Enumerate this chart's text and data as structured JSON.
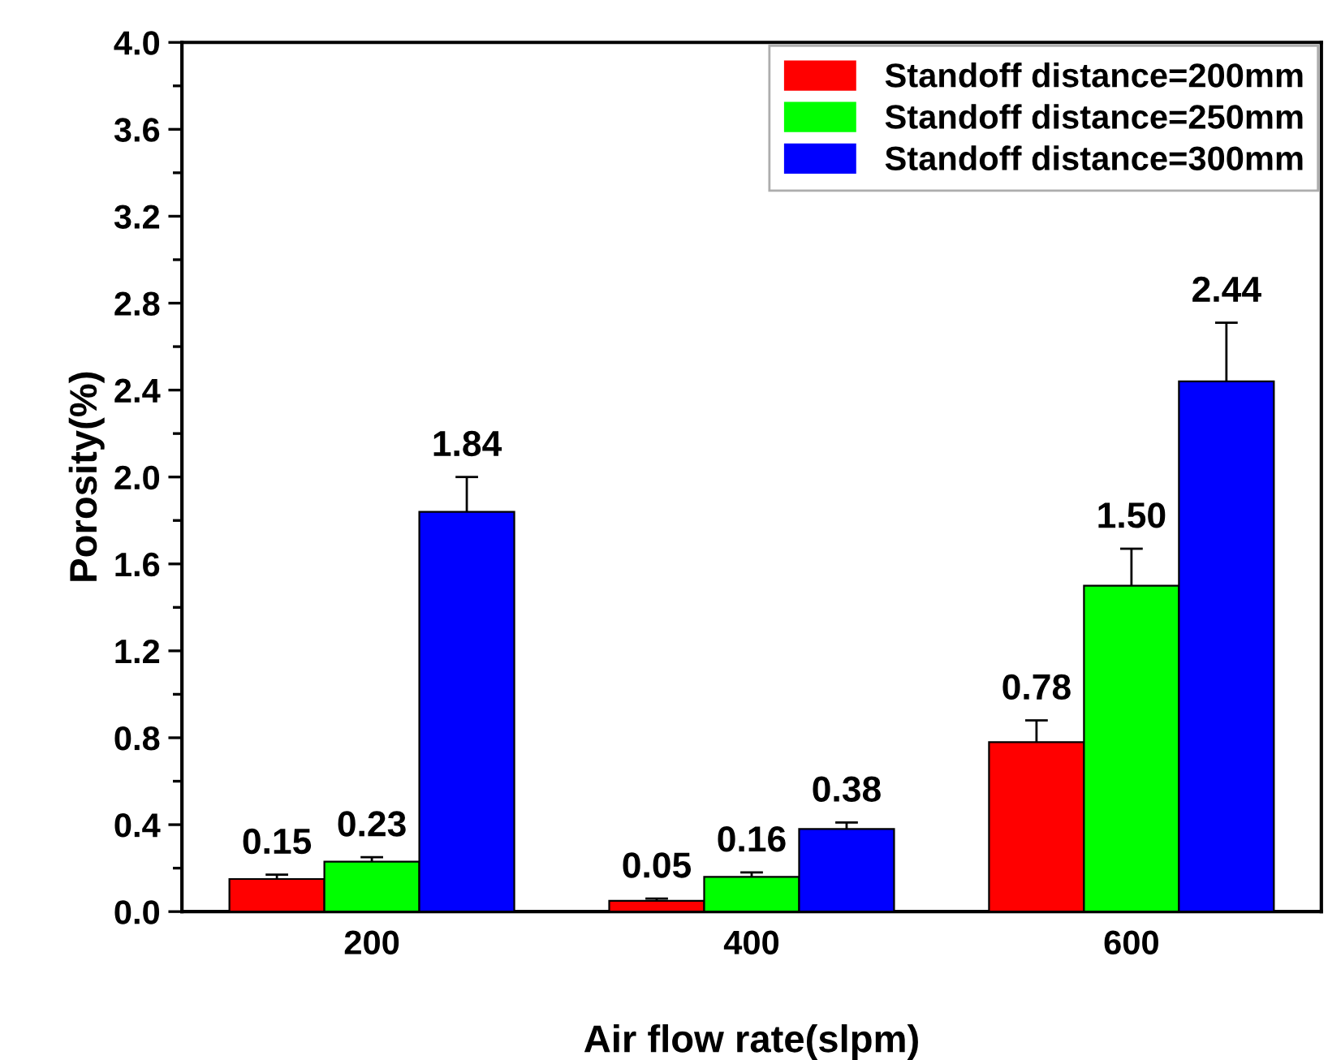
{
  "chart_data": {
    "type": "bar",
    "xlabel": "Air flow rate(slpm)",
    "ylabel": "Porosity(%)",
    "categories": [
      "200",
      "400",
      "600"
    ],
    "series": [
      {
        "name": "Standoff distance=200mm",
        "color": "#ff0000",
        "values": [
          0.15,
          0.05,
          0.78
        ],
        "value_labels": [
          "0.15",
          "0.05",
          "0.78"
        ],
        "errors": [
          0.02,
          0.01,
          0.1
        ]
      },
      {
        "name": "Standoff distance=250mm",
        "color": "#00ff00",
        "values": [
          0.23,
          0.16,
          1.5
        ],
        "value_labels": [
          "0.23",
          "0.16",
          "1.50"
        ],
        "errors": [
          0.02,
          0.02,
          0.17
        ]
      },
      {
        "name": "Standoff distance=300mm",
        "color": "#0000ff",
        "values": [
          1.84,
          0.38,
          2.44
        ],
        "value_labels": [
          "1.84",
          "0.38",
          "2.44"
        ],
        "errors": [
          0.16,
          0.03,
          0.27
        ]
      }
    ],
    "ylim": [
      0,
      4.0
    ],
    "yticks": [
      {
        "value": 0,
        "label": "0.0"
      },
      {
        "value": 0.4,
        "label": "0.4"
      },
      {
        "value": 0.8,
        "label": "0.8"
      },
      {
        "value": 1.2,
        "label": "1.2"
      },
      {
        "value": 1.6,
        "label": "1.6"
      },
      {
        "value": 2.0,
        "label": "2.0"
      },
      {
        "value": 2.4,
        "label": "2.4"
      },
      {
        "value": 2.8,
        "label": "2.8"
      },
      {
        "value": 3.2,
        "label": "3.2"
      },
      {
        "value": 3.6,
        "label": "3.6"
      },
      {
        "value": 4.0,
        "label": "4.0"
      }
    ],
    "legend": "top right",
    "grid": false
  }
}
